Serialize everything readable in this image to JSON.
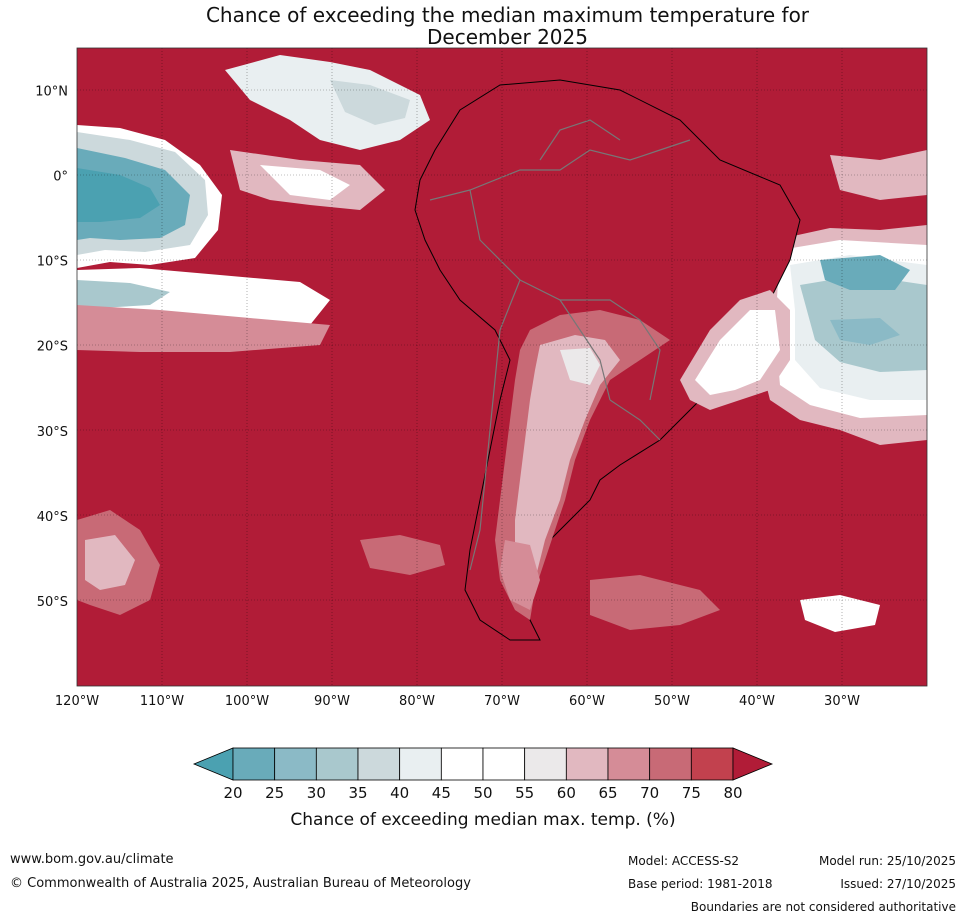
{
  "title_line1": "Chance of exceeding the median maximum temperature for",
  "title_line2": "December 2025",
  "map": {
    "lat_ticks": [
      {
        "value": 10,
        "label": "10°N"
      },
      {
        "value": 0,
        "label": "0°"
      },
      {
        "value": -10,
        "label": "10°S"
      },
      {
        "value": -20,
        "label": "20°S"
      },
      {
        "value": -30,
        "label": "30°S"
      },
      {
        "value": -40,
        "label": "40°S"
      },
      {
        "value": -50,
        "label": "50°S"
      }
    ],
    "lon_ticks": [
      {
        "value": -120,
        "label": "120°W"
      },
      {
        "value": -110,
        "label": "110°W"
      },
      {
        "value": -100,
        "label": "100°W"
      },
      {
        "value": -90,
        "label": "90°W"
      },
      {
        "value": -80,
        "label": "80°W"
      },
      {
        "value": -70,
        "label": "70°W"
      },
      {
        "value": -60,
        "label": "60°W"
      },
      {
        "value": -50,
        "label": "50°W"
      },
      {
        "value": -40,
        "label": "40°W"
      },
      {
        "value": -30,
        "label": "30°W"
      }
    ],
    "extent": {
      "lon_min": -120,
      "lon_max": -20,
      "lat_min": -60,
      "lat_max": 15
    },
    "dominant_color": "#b11c37"
  },
  "colorbar": {
    "levels": [
      "20",
      "25",
      "30",
      "35",
      "40",
      "45",
      "50",
      "55",
      "60",
      "65",
      "70",
      "75",
      "80"
    ],
    "colors": [
      "#4ba1b1",
      "#69abba",
      "#8bbac6",
      "#a9c8cd",
      "#ccd9dc",
      "#e9eff1",
      "#ffffff",
      "#ffffff",
      "#ebe9ea",
      "#e1b8c0",
      "#d58c97",
      "#c86a76",
      "#c2414e",
      "#b11c37"
    ],
    "label": "Chance of exceeding median max. temp. (%)"
  },
  "footer": {
    "website": "www.bom.gov.au/climate",
    "copyright": "© Commonwealth of Australia 2025, Australian Bureau of Meteorology",
    "model": "Model: ACCESS-S2",
    "base_period": "Base period: 1981-2018",
    "model_run": "Model run: 25/10/2025",
    "issued": "Issued: 27/10/2025",
    "disclaimer": "Boundaries are not considered authoritative"
  }
}
